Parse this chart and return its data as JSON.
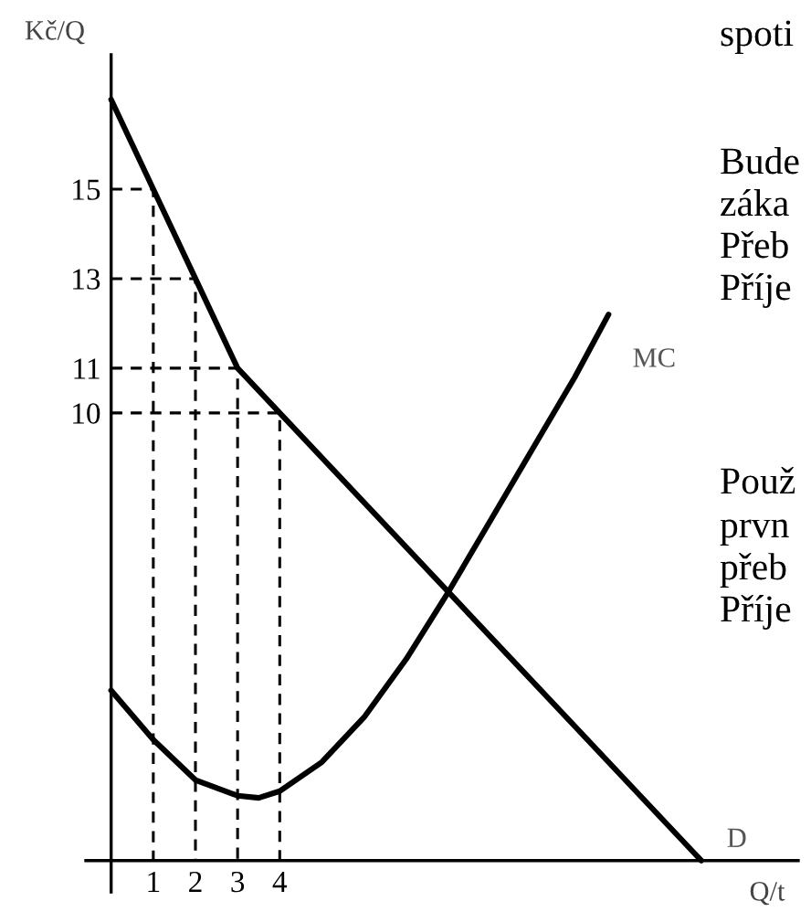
{
  "chart_data": {
    "type": "line",
    "xlabel": "Q/t",
    "ylabel": "Kč/Q",
    "xlim": [
      -0.6,
      16.3
    ],
    "ylim": [
      -0.7,
      18
    ],
    "xticks": [
      1,
      2,
      3,
      4
    ],
    "yticks": [
      10,
      11,
      13,
      15
    ],
    "grid": false,
    "legend": false,
    "marker": "none",
    "series": [
      {
        "name": "D",
        "color": "#000000",
        "x": [
          0,
          1,
          2,
          3,
          4,
          14
        ],
        "values": [
          17,
          15,
          13,
          11,
          10,
          0
        ]
      },
      {
        "name": "MC",
        "color": "#000000",
        "x": [
          0,
          1,
          2,
          3,
          3.5,
          4,
          5,
          6,
          7,
          8,
          9,
          10,
          11,
          11.8
        ],
        "values": [
          3.8,
          2.7,
          1.8,
          1.45,
          1.4,
          1.55,
          2.2,
          3.2,
          4.5,
          6,
          7.6,
          9.2,
          10.8,
          12.2
        ]
      },
      {
        "color": "#000000",
        "line_style": "dashed",
        "x": [
          0,
          1,
          1
        ],
        "values": [
          15,
          15,
          0
        ]
      },
      {
        "color": "#000000",
        "line_style": "dashed",
        "x": [
          0,
          2,
          2
        ],
        "values": [
          13,
          13,
          0
        ]
      },
      {
        "color": "#000000",
        "line_style": "dashed",
        "x": [
          0,
          3,
          3
        ],
        "values": [
          11,
          11,
          0
        ]
      },
      {
        "color": "#000000",
        "line_style": "dashed",
        "x": [
          0,
          4,
          4
        ],
        "values": [
          10,
          10,
          0
        ]
      }
    ],
    "annotations": [
      "spoti",
      "Bude",
      "záka",
      "Přeb",
      "Příje",
      "Použ",
      "prvn",
      "přeb",
      "Příje"
    ]
  }
}
